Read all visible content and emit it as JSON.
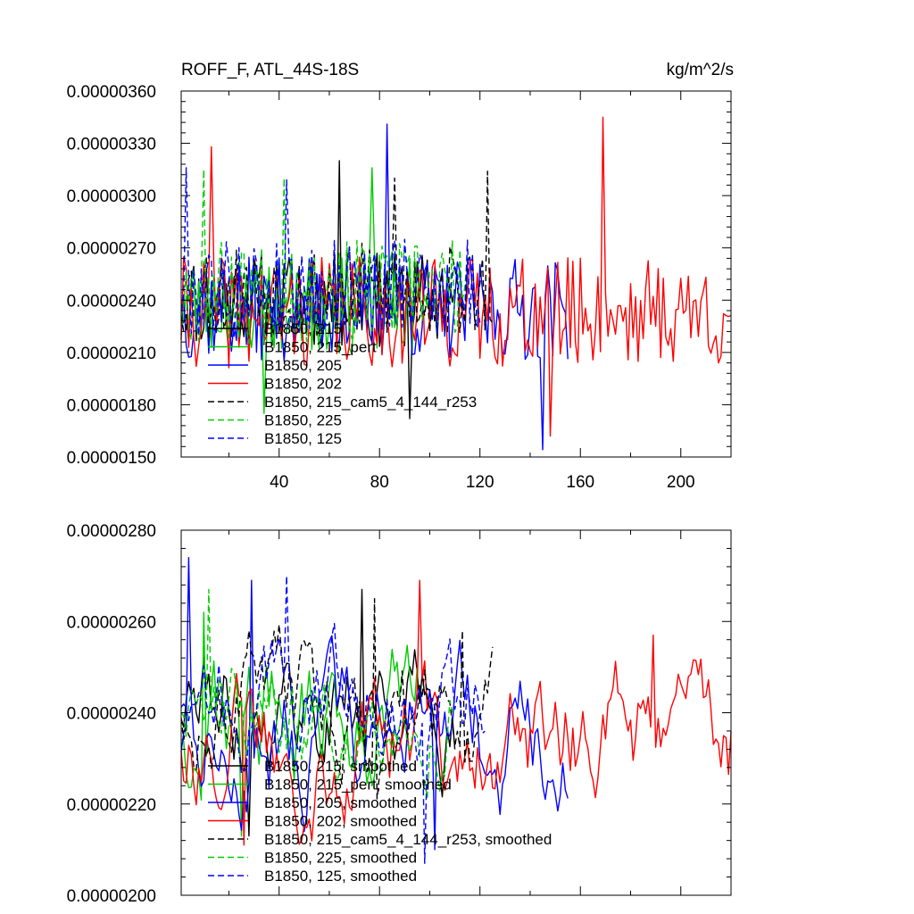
{
  "chart_data": [
    {
      "type": "line",
      "title": "ROFF_F, ATL_44S-18S",
      "units": "kg/m^2/s",
      "xlabel": "",
      "ylabel": "",
      "xlim": [
        1,
        220
      ],
      "ylim": [
        1.5e-06,
        3.6e-06
      ],
      "y_ticks": [
        1.5e-06,
        1.8e-06,
        2.1e-06,
        2.4e-06,
        2.7e-06,
        3e-06,
        3.3e-06,
        3.6e-06
      ],
      "y_tick_labels": [
        "0.00000150",
        "0.00000180",
        "0.00000210",
        "0.00000240",
        "0.00000270",
        "0.00000300",
        "0.00000330",
        "0.00000360"
      ],
      "x_ticks": [
        40,
        80,
        120,
        160,
        200
      ],
      "x_tick_labels": [
        "40",
        "80",
        "120",
        "160",
        "200"
      ],
      "legend_position": "lower-left",
      "series": [
        {
          "name": "B1850, 215",
          "color": "#000000",
          "dashed": false,
          "length": 110,
          "mean": 2.4e-06,
          "amp": 2.8e-07,
          "seed": 11,
          "peaks": [
            [
              64,
              3.2e-06
            ],
            [
              92,
              1.72e-06
            ]
          ]
        },
        {
          "name": "B1850, 215_pert",
          "color": "#00cc00",
          "dashed": false,
          "length": 95,
          "mean": 2.38e-06,
          "amp": 3e-07,
          "seed": 23,
          "peaks": [
            [
              77,
              3.16e-06
            ],
            [
              34,
              1.75e-06
            ]
          ]
        },
        {
          "name": "B1850, 205",
          "color": "#0000ff",
          "dashed": false,
          "length": 155,
          "mean": 2.35e-06,
          "amp": 3e-07,
          "seed": 37,
          "peaks": [
            [
              83,
              3.41e-06
            ],
            [
              145,
              1.54e-06
            ]
          ]
        },
        {
          "name": "B1850, 202",
          "color": "#ff0000",
          "dashed": false,
          "length": 220,
          "mean": 2.33e-06,
          "amp": 3.2e-07,
          "seed": 41,
          "peaks": [
            [
              13,
              3.28e-06
            ],
            [
              169,
              3.45e-06
            ],
            [
              148,
              1.62e-06
            ]
          ]
        },
        {
          "name": "B1850, 215_cam5_4_144_r253",
          "color": "#000000",
          "dashed": true,
          "length": 125,
          "mean": 2.45e-06,
          "amp": 2.8e-07,
          "seed": 53,
          "peaks": [
            [
              123,
              3.14e-06
            ],
            [
              86,
              3.1e-06
            ]
          ]
        },
        {
          "name": "B1850, 225",
          "color": "#00cc00",
          "dashed": true,
          "length": 115,
          "mean": 2.45e-06,
          "amp": 3e-07,
          "seed": 67,
          "peaks": [
            [
              10,
              3.15e-06
            ],
            [
              42,
              3.1e-06
            ]
          ]
        },
        {
          "name": "B1850, 125",
          "color": "#0000ff",
          "dashed": true,
          "length": 120,
          "mean": 2.47e-06,
          "amp": 2.8e-07,
          "seed": 79,
          "peaks": [
            [
              3,
              3.16e-06
            ],
            [
              43,
              3.09e-06
            ]
          ]
        }
      ]
    },
    {
      "type": "line",
      "title": "",
      "units": "",
      "xlabel": "",
      "ylabel": "",
      "xlim": [
        1,
        220
      ],
      "ylim": [
        2e-06,
        2.8e-06
      ],
      "y_ticks": [
        2e-06,
        2.2e-06,
        2.4e-06,
        2.6e-06,
        2.8e-06
      ],
      "y_tick_labels": [
        "0.00000200",
        "0.00000220",
        "0.00000240",
        "0.00000260",
        "0.00000280"
      ],
      "x_ticks": [
        40,
        80,
        120,
        160,
        200
      ],
      "x_tick_labels": [],
      "legend_position": "lower-left",
      "series": [
        {
          "name": "B1850, 215, smoothed",
          "color": "#000000",
          "dashed": false,
          "length": 110,
          "mean": 2.42e-06,
          "amp": 1.4e-07,
          "seed": 111,
          "peaks": [
            [
              73,
              2.67e-06
            ],
            [
              28,
              2.13e-06
            ]
          ]
        },
        {
          "name": "B1850, 215_pert, smoothed",
          "color": "#00cc00",
          "dashed": false,
          "length": 95,
          "mean": 2.38e-06,
          "amp": 1.6e-07,
          "seed": 123,
          "peaks": [
            [
              10,
              2.62e-06
            ],
            [
              25,
              2.13e-06
            ]
          ]
        },
        {
          "name": "B1850, 205, smoothed",
          "color": "#0000ff",
          "dashed": false,
          "length": 155,
          "mean": 2.35e-06,
          "amp": 1.5e-07,
          "seed": 137,
          "peaks": [
            [
              4,
              2.74e-06
            ],
            [
              29,
              2.69e-06
            ],
            [
              102,
              2.1e-06
            ]
          ]
        },
        {
          "name": "B1850, 202, smoothed",
          "color": "#ff0000",
          "dashed": false,
          "length": 220,
          "mean": 2.35e-06,
          "amp": 1.5e-07,
          "seed": 141,
          "peaks": [
            [
              96,
              2.69e-06
            ],
            [
              26,
              2.11e-06
            ],
            [
              189,
              2.57e-06
            ]
          ]
        },
        {
          "name": "B1850, 215_cam5_4_144_r253, smoothed",
          "color": "#000000",
          "dashed": true,
          "length": 125,
          "mean": 2.42e-06,
          "amp": 1.4e-07,
          "seed": 153,
          "peaks": [
            [
              113,
              2.58e-06
            ],
            [
              78,
              2.65e-06
            ]
          ]
        },
        {
          "name": "B1850, 225, smoothed",
          "color": "#00cc00",
          "dashed": true,
          "length": 110,
          "mean": 2.43e-06,
          "amp": 1.4e-07,
          "seed": 167,
          "peaks": [
            [
              12,
              2.67e-06
            ]
          ]
        },
        {
          "name": "B1850, 125, smoothed",
          "color": "#0000ff",
          "dashed": true,
          "length": 122,
          "mean": 2.44e-06,
          "amp": 1.3e-07,
          "seed": 179,
          "peaks": [
            [
              43,
              2.7e-06
            ],
            [
              98,
              2.07e-06
            ]
          ]
        }
      ]
    }
  ]
}
